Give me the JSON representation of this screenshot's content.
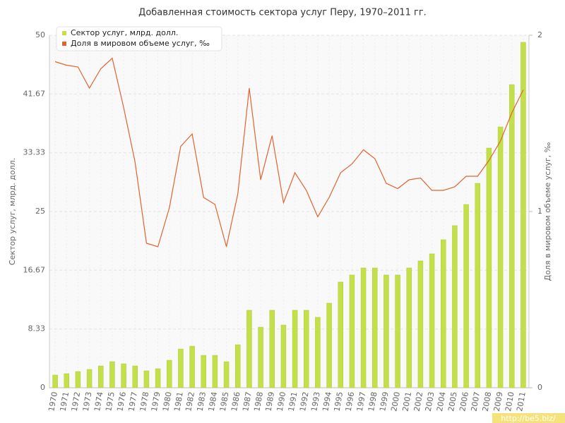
{
  "chart_data": {
    "type": "bar_line",
    "title": "Добавленная стоимость сектора услуг Перу, 1970–2011 гг.",
    "y_label": "Сектор услуг, млрд. долл.",
    "y2_label": "Доля в мировом объеме услуг, ‰",
    "watermark": "http://be5.biz/",
    "categories": [
      "1970",
      "1971",
      "1972",
      "1973",
      "1974",
      "1975",
      "1976",
      "1977",
      "1978",
      "1979",
      "1980",
      "1981",
      "1982",
      "1983",
      "1984",
      "1985",
      "1986",
      "1987",
      "1988",
      "1989",
      "1990",
      "1991",
      "1992",
      "1993",
      "1994",
      "1995",
      "1996",
      "1997",
      "1998",
      "1999",
      "2000",
      "2001",
      "2002",
      "2003",
      "2004",
      "2005",
      "2006",
      "2007",
      "2008",
      "2009",
      "2010",
      "2011"
    ],
    "series": [
      {
        "name": "Сектор услуг, млрд. долл.",
        "type": "bar",
        "color": "#c3df4a",
        "values": [
          1.8,
          2.0,
          2.3,
          2.6,
          3.1,
          3.7,
          3.4,
          3.1,
          2.4,
          2.7,
          3.9,
          5.5,
          5.9,
          4.6,
          4.6,
          3.7,
          6.1,
          11.0,
          8.6,
          11.0,
          8.9,
          11.0,
          11.0,
          10.0,
          12.0,
          15.0,
          16.0,
          17.0,
          17.0,
          16.0,
          16.0,
          17.0,
          18.0,
          19.0,
          21.0,
          23.0,
          26.0,
          29.0,
          34.0,
          37.0,
          43.0,
          49.0
        ]
      },
      {
        "name": "Доля в мировом объеме услуг, ‰",
        "type": "line",
        "axis": "y2",
        "color": "#e0642f",
        "values": [
          1.85,
          1.83,
          1.82,
          1.7,
          1.81,
          1.87,
          1.59,
          1.28,
          0.82,
          0.8,
          1.02,
          1.37,
          1.44,
          1.08,
          1.04,
          0.8,
          1.1,
          1.7,
          1.18,
          1.43,
          1.05,
          1.22,
          1.12,
          0.97,
          1.08,
          1.22,
          1.27,
          1.35,
          1.3,
          1.16,
          1.13,
          1.18,
          1.19,
          1.12,
          1.12,
          1.14,
          1.2,
          1.2,
          1.29,
          1.4,
          1.56,
          1.69
        ]
      }
    ],
    "ylim": [
      0,
      50
    ],
    "yticks": [
      0,
      8.33,
      16.67,
      25,
      33.33,
      41.67,
      50
    ],
    "y2lim": [
      0,
      2
    ],
    "y2ticks": [
      0,
      1,
      2
    ],
    "grid": true,
    "legend": "top-left"
  }
}
